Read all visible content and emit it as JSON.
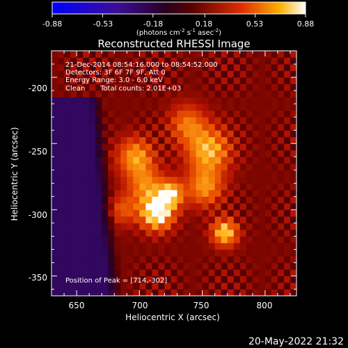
{
  "colorbar": {
    "ticks": [
      "-0.88",
      "-0.53",
      "-0.18",
      "0.18",
      "0.53",
      "0.88"
    ],
    "range": [
      -0.88,
      0.88
    ],
    "unit_main": "(photons cm",
    "unit_sup1": "-2",
    "unit_mid1": " s",
    "unit_sup2": "-1",
    "unit_mid2": " asec",
    "unit_sup3": "-2",
    "unit_end": ")"
  },
  "chart_data": {
    "type": "heatmap",
    "title": "Reconstructed RHESSI Image",
    "xlabel": "Heliocentric X (arcsec)",
    "ylabel": "Heliocentric Y (arcsec)",
    "xlim": [
      630,
      825
    ],
    "ylim": [
      -365,
      -180
    ],
    "x_ticks": [
      650,
      700,
      750,
      800
    ],
    "y_ticks": [
      -200,
      -250,
      -300,
      -350
    ],
    "colormap": "hot (black-purple-red-orange-yellow-white)",
    "pixel_size": 5,
    "background": {
      "value": 0.08,
      "ripple_amplitude": 0.12,
      "ripple_period_arcsec": 11
    },
    "dark_region": {
      "value": -0.3,
      "x_max": 672,
      "y_range": [
        -365,
        -215
      ],
      "boundary_slope": 0.5
    },
    "bright_sources": [
      {
        "x": 714,
        "y": -302,
        "peak": 0.88,
        "sigma": 9
      },
      {
        "x": 725,
        "y": -288,
        "peak": 0.66,
        "sigma": 7
      },
      {
        "x": 768,
        "y": -317,
        "peak": 0.7,
        "sigma": 7
      },
      {
        "x": 697,
        "y": -260,
        "peak": 0.55,
        "sigma": 10
      },
      {
        "x": 755,
        "y": -255,
        "peak": 0.62,
        "sigma": 12
      },
      {
        "x": 752,
        "y": -283,
        "peak": 0.5,
        "sigma": 10
      },
      {
        "x": 738,
        "y": -235,
        "peak": 0.42,
        "sigma": 10
      },
      {
        "x": 705,
        "y": -282,
        "peak": 0.45,
        "sigma": 10
      },
      {
        "x": 687,
        "y": -300,
        "peak": 0.32,
        "sigma": 8
      }
    ],
    "annotations": [
      "21-Dec-2014 08:54:16.000 to 08:54:52.000",
      "Detectors: 3F 6F 7F 9F, Att 0",
      "Energy Range: 3.0 - 6.0 keV",
      "Clean",
      "Total counts: 2.01E+03"
    ],
    "peak_label": "Position of Peak = [714,-302]"
  },
  "footer": {
    "timestamp": "20-May-2022 21:32"
  }
}
